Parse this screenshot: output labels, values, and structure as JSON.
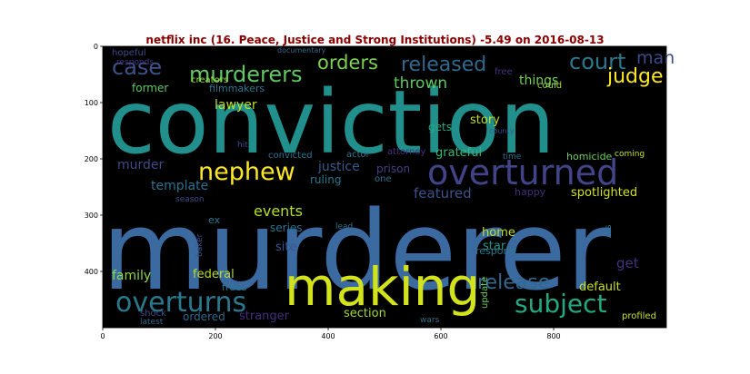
{
  "title": "netflix inc (16. Peace, Justice and Strong Institutions) -5.49 on 2016-08-13",
  "x_ticks": [
    "0",
    "200",
    "400",
    "600",
    "800"
  ],
  "y_ticks": [
    "0",
    "100",
    "200",
    "300",
    "400"
  ],
  "words": [
    {
      "text": "conviction",
      "color": "#21908d"
    },
    {
      "text": "murderer",
      "color": "#3b6aa0"
    },
    {
      "text": "making",
      "color": "#d2e21b"
    },
    {
      "text": "overturned",
      "color": "#414487"
    },
    {
      "text": "nephew",
      "color": "#fde725"
    },
    {
      "text": "overturns",
      "color": "#2a788e"
    },
    {
      "text": "subject",
      "color": "#22a884"
    },
    {
      "text": "release",
      "color": "#31688e"
    },
    {
      "text": "murderers",
      "color": "#5ec962"
    },
    {
      "text": "case",
      "color": "#3b528b"
    },
    {
      "text": "orders",
      "color": "#7ad151"
    },
    {
      "text": "released",
      "color": "#31688e"
    },
    {
      "text": "court",
      "color": "#2a788e"
    },
    {
      "text": "judge",
      "color": "#fde725"
    },
    {
      "text": "man",
      "color": "#3e4a89"
    },
    {
      "text": "thrown",
      "color": "#5ec962"
    },
    {
      "text": "events",
      "color": "#b5de2b"
    },
    {
      "text": "lawyer",
      "color": "#bddf26"
    },
    {
      "text": "featured",
      "color": "#3b528b"
    },
    {
      "text": "spotlighted",
      "color": "#d2e21b"
    },
    {
      "text": "murder",
      "color": "#3e4a89"
    },
    {
      "text": "justice",
      "color": "#38598c"
    },
    {
      "text": "template",
      "color": "#2c728e"
    },
    {
      "text": "family",
      "color": "#8fd744"
    },
    {
      "text": "federal",
      "color": "#b5de2b"
    },
    {
      "text": "default",
      "color": "#c8e020"
    },
    {
      "text": "site",
      "color": "#39568c"
    },
    {
      "text": "section",
      "color": "#a0da39"
    },
    {
      "text": "ordered",
      "color": "#31688e"
    },
    {
      "text": "stranger",
      "color": "#472d7b"
    },
    {
      "text": "get",
      "color": "#46337e"
    },
    {
      "text": "star",
      "color": "#1f968b"
    },
    {
      "text": "home",
      "color": "#bddf26"
    },
    {
      "text": "series",
      "color": "#2c728e"
    },
    {
      "text": "things",
      "color": "#75d054"
    },
    {
      "text": "story",
      "color": "#c0df25"
    },
    {
      "text": "gets",
      "color": "#22a884"
    },
    {
      "text": "grateful",
      "color": "#35b779"
    },
    {
      "text": "former",
      "color": "#5ec962"
    },
    {
      "text": "filmmakers",
      "color": "#2a788e"
    },
    {
      "text": "creators",
      "color": "#9bd93c"
    },
    {
      "text": "hopeful",
      "color": "#3e4a89"
    },
    {
      "text": "responds",
      "color": "#443983"
    },
    {
      "text": "documentary",
      "color": "#31688e"
    },
    {
      "text": "free",
      "color": "#46337e"
    },
    {
      "text": "could",
      "color": "#9bd93c"
    },
    {
      "text": "prison",
      "color": "#433e85"
    },
    {
      "text": "actor",
      "color": "#2a788e"
    },
    {
      "text": "convicted",
      "color": "#2c728e"
    },
    {
      "text": "attorney",
      "color": "#472d7b"
    },
    {
      "text": "county",
      "color": "#3b528b"
    },
    {
      "text": "time",
      "color": "#2e6f8e"
    },
    {
      "text": "homicide",
      "color": "#6ccd5a"
    },
    {
      "text": "coming",
      "color": "#c8e020"
    },
    {
      "text": "hit",
      "color": "#3e4a89"
    },
    {
      "text": "season",
      "color": "#3e4a89"
    },
    {
      "text": "ruling",
      "color": "#2a788e"
    },
    {
      "text": "one",
      "color": "#2c728e"
    },
    {
      "text": "happy",
      "color": "#472d7b"
    },
    {
      "text": "ex",
      "color": "#2a788e"
    },
    {
      "text": "lead",
      "color": "#2c728e"
    },
    {
      "text": "baker",
      "color": "#3b528b"
    },
    {
      "text": "respond",
      "color": "#2a788e"
    },
    {
      "text": "us",
      "color": "#2c728e"
    },
    {
      "text": "frees",
      "color": "#2a788e"
    },
    {
      "text": "shock",
      "color": "#3e4a89"
    },
    {
      "text": "latest",
      "color": "#31688e"
    },
    {
      "text": "wars",
      "color": "#2c728e"
    },
    {
      "text": "update",
      "color": "#6ccd5a"
    },
    {
      "text": "profiled",
      "color": "#c8e020"
    }
  ]
}
